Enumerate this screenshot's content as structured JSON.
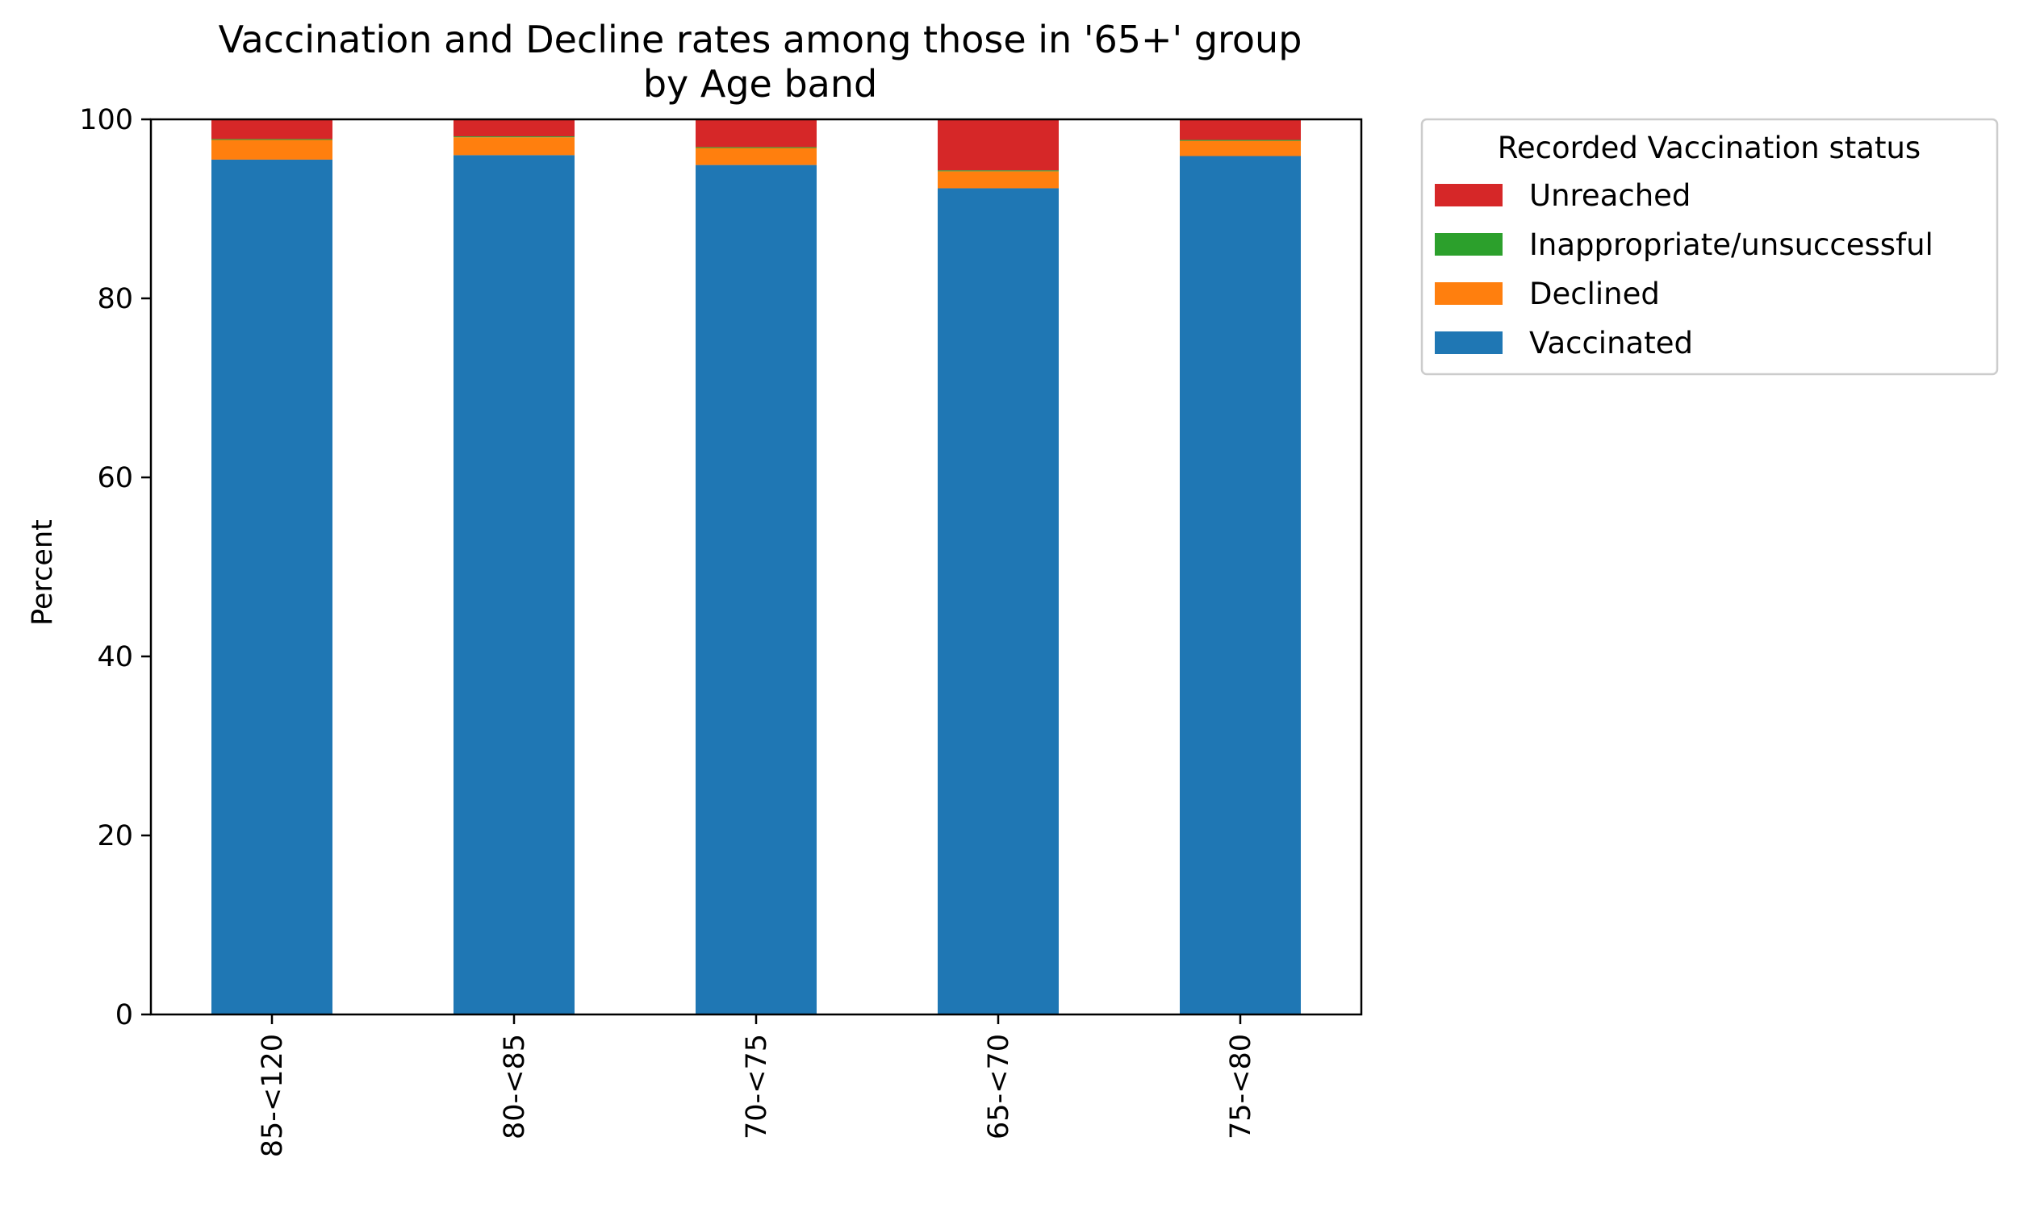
{
  "chart_data": {
    "type": "bar",
    "stacked": true,
    "title": "Vaccination and Decline rates among those in '65+' group",
    "subtitle": "by Age band",
    "xlabel": "",
    "ylabel": "Percent",
    "ylim": [
      0,
      100
    ],
    "yticks": [
      0,
      20,
      40,
      60,
      80,
      100
    ],
    "grid": false,
    "legend_title": "Recorded Vaccination status",
    "legend_position": "outside-top-right",
    "categories": [
      "85-<120",
      "80-<85",
      "70-<75",
      "65-<70",
      "75-<80"
    ],
    "series": [
      {
        "name": "Vaccinated",
        "color": "#1f77b4",
        "values": [
          95.5,
          96.0,
          94.9,
          92.3,
          95.9
        ]
      },
      {
        "name": "Declined",
        "color": "#ff7f0e",
        "values": [
          2.2,
          2.0,
          1.9,
          1.9,
          1.7
        ]
      },
      {
        "name": "Inappropriate/unsuccessful",
        "color": "#2ca02c",
        "values": [
          0.1,
          0.1,
          0.1,
          0.1,
          0.1
        ]
      },
      {
        "name": "Unreached",
        "color": "#d62728",
        "values": [
          2.2,
          1.9,
          3.1,
          5.7,
          2.3
        ]
      }
    ],
    "legend_order": [
      "Unreached",
      "Inappropriate/unsuccessful",
      "Declined",
      "Vaccinated"
    ]
  }
}
